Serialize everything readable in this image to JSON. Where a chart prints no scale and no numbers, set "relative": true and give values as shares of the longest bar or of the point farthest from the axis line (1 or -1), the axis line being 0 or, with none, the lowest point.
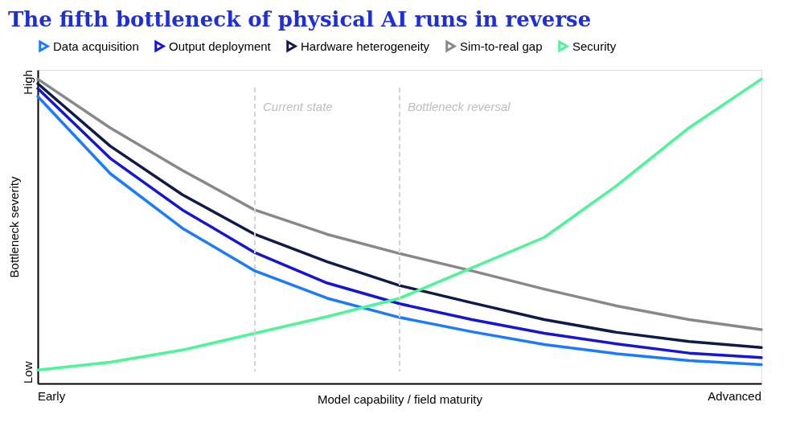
{
  "chart_data": {
    "type": "line",
    "title": "The fifth bottleneck of physical AI runs in reverse",
    "xlabel": "Model capability / field maturity",
    "ylabel": "Bottleneck severity",
    "relative": true,
    "categories": [
      null,
      null,
      null,
      null,
      null,
      null,
      null,
      null,
      null,
      null,
      null
    ],
    "annotations": [
      "Early",
      "Advanced",
      "Low",
      "High",
      "Current state",
      "Bottleneck reversal"
    ],
    "series": [
      {
        "name": "Data acquisition",
        "color": "#1a7bff",
        "values": [
          0.943,
          0.69,
          0.51,
          0.37,
          0.28,
          0.217,
          0.17,
          0.128,
          0.098,
          0.075,
          0.062
        ]
      },
      {
        "name": "Output deployment",
        "color": "#1515d6",
        "values": [
          0.969,
          0.74,
          0.57,
          0.43,
          0.33,
          0.262,
          0.21,
          0.165,
          0.13,
          0.1,
          0.085
        ]
      },
      {
        "name": "Hardware heterogeneity",
        "color": "#0d1a4a",
        "values": [
          0.985,
          0.78,
          0.62,
          0.49,
          0.4,
          0.322,
          0.265,
          0.21,
          0.168,
          0.138,
          0.118
        ]
      },
      {
        "name": "Sim-to-real gap",
        "color": "#888888",
        "values": [
          1.0,
          0.84,
          0.7,
          0.57,
          0.49,
          0.427,
          0.37,
          0.31,
          0.255,
          0.21,
          0.177
        ]
      },
      {
        "name": "Security",
        "color": "#4cf595",
        "values": [
          0.044,
          0.07,
          0.11,
          0.165,
          0.22,
          0.28,
          0.38,
          0.48,
          0.65,
          0.84,
          1.0
        ]
      }
    ],
    "legend": "top",
    "marker": "none",
    "line_style": "solid"
  }
}
